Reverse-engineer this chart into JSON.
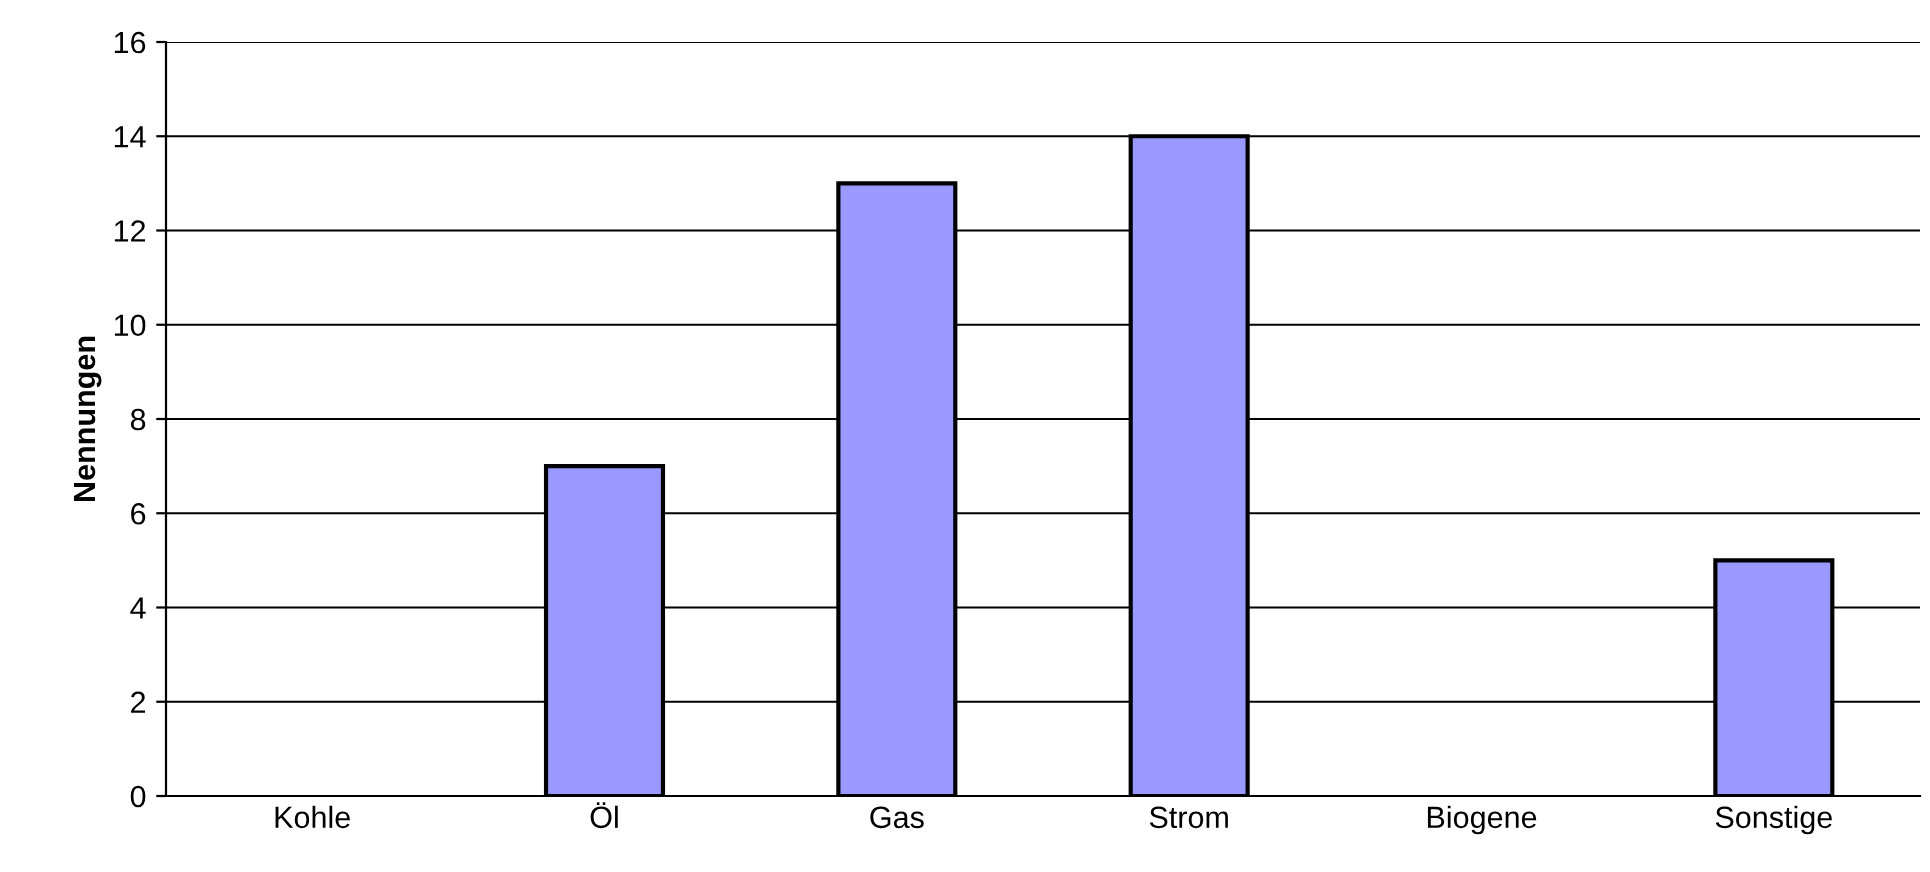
{
  "chart_data": {
    "type": "bar",
    "ylabel": "Nennungen",
    "categories": [
      "Kohle",
      "Öl",
      "Gas",
      "Strom",
      "Biogene",
      "Sonstige"
    ],
    "values": [
      0,
      7,
      13,
      14,
      0,
      5
    ],
    "color": "#9999ff",
    "ylim": [
      0,
      16
    ],
    "yticks": [
      0,
      2,
      4,
      6,
      8,
      10,
      12,
      14,
      16
    ],
    "grid": "y"
  }
}
